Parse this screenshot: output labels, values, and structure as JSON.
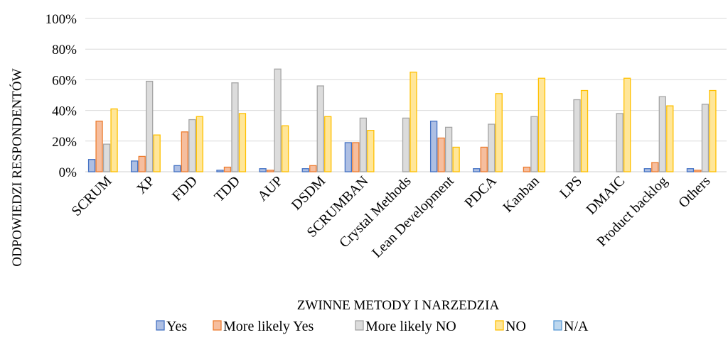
{
  "chart_data": {
    "type": "bar",
    "title": "",
    "xlabel": "ZWINNE METODY I NARZEDZIA",
    "ylabel": "ODPOWIEDZI RESPONDENTÓW",
    "ylim": [
      0,
      100
    ],
    "yticks": [
      "0%",
      "20%",
      "40%",
      "60%",
      "80%",
      "100%"
    ],
    "ytick_values": [
      0,
      20,
      40,
      60,
      80,
      100
    ],
    "grid": true,
    "legend_position": "bottom",
    "categories": [
      "SCRUM",
      "XP",
      "FDD",
      "TDD",
      "AUP",
      "DSDM",
      "SCRUMBAN",
      "Crystal Methods",
      "Lean Development",
      "PDCA",
      "Kanban",
      "LPS",
      "DMAIC",
      "Product backlog",
      "Others"
    ],
    "series": [
      {
        "name": "Yes",
        "color": "#4472C4",
        "fill": "#AEBFE3",
        "values": [
          8,
          7,
          4,
          1,
          2,
          2,
          19,
          0,
          33,
          2,
          0,
          0,
          0,
          2,
          2
        ]
      },
      {
        "name": "More likely Yes",
        "color": "#ED7D31",
        "fill": "#F6BE9E",
        "values": [
          33,
          10,
          26,
          3,
          1,
          4,
          19,
          0,
          22,
          16,
          3,
          0,
          0,
          6,
          1
        ]
      },
      {
        "name": "More likely NO",
        "color": "#A5A5A5",
        "fill": "#DCDCDC",
        "values": [
          18,
          59,
          34,
          58,
          67,
          56,
          35,
          35,
          29,
          31,
          36,
          47,
          38,
          49,
          44
        ]
      },
      {
        "name": "NO",
        "color": "#FFC000",
        "fill": "#FFE699",
        "values": [
          41,
          24,
          36,
          38,
          30,
          36,
          27,
          65,
          16,
          51,
          61,
          53,
          61,
          43,
          53
        ]
      },
      {
        "name": "N/A",
        "color": "#5B9BD5",
        "fill": "#BDD7EE",
        "values": [
          0,
          0,
          0,
          0,
          0,
          0,
          0,
          0,
          0,
          0,
          0,
          0,
          0,
          0,
          0
        ]
      }
    ]
  }
}
